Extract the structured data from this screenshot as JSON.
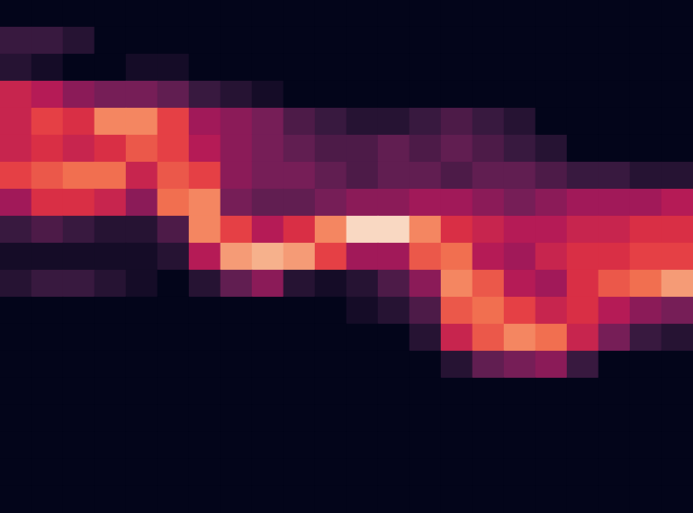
{
  "chart_data": {
    "type": "heatmap",
    "tick_labels": false,
    "grid": false,
    "zlim": [
      0,
      100
    ],
    "values": [
      [
        0,
        0,
        0,
        0,
        0,
        0,
        0,
        0,
        0,
        0,
        0,
        0,
        0,
        0,
        0,
        0,
        0,
        0,
        0,
        0,
        0,
        0
      ],
      [
        15,
        15,
        10,
        0,
        0,
        0,
        0,
        0,
        0,
        0,
        0,
        0,
        0,
        0,
        0,
        0,
        0,
        0,
        0,
        0,
        0,
        0
      ],
      [
        10,
        5,
        0,
        0,
        5,
        5,
        0,
        0,
        0,
        0,
        0,
        0,
        0,
        0,
        0,
        0,
        0,
        0,
        0,
        0,
        0,
        0
      ],
      [
        50,
        45,
        35,
        30,
        30,
        25,
        15,
        10,
        5,
        0,
        0,
        0,
        0,
        0,
        0,
        0,
        0,
        0,
        0,
        0,
        0,
        0
      ],
      [
        50,
        60,
        55,
        75,
        75,
        60,
        40,
        35,
        30,
        20,
        15,
        10,
        10,
        15,
        20,
        15,
        10,
        0,
        0,
        0,
        0,
        0
      ],
      [
        50,
        55,
        50,
        55,
        65,
        60,
        45,
        35,
        30,
        25,
        20,
        20,
        25,
        20,
        25,
        20,
        15,
        10,
        0,
        0,
        0,
        0
      ],
      [
        60,
        65,
        70,
        70,
        50,
        65,
        60,
        35,
        30,
        30,
        25,
        20,
        25,
        25,
        20,
        25,
        25,
        20,
        15,
        15,
        10,
        10
      ],
      [
        40,
        55,
        55,
        50,
        35,
        70,
        75,
        30,
        25,
        25,
        30,
        35,
        35,
        40,
        40,
        35,
        30,
        35,
        40,
        40,
        40,
        45
      ],
      [
        15,
        20,
        15,
        10,
        10,
        20,
        75,
        60,
        45,
        55,
        75,
        95,
        95,
        75,
        55,
        50,
        45,
        45,
        50,
        50,
        55,
        55
      ],
      [
        5,
        5,
        5,
        5,
        5,
        10,
        45,
        80,
        85,
        80,
        60,
        40,
        40,
        65,
        70,
        45,
        40,
        50,
        55,
        55,
        60,
        60
      ],
      [
        10,
        15,
        15,
        10,
        5,
        0,
        10,
        25,
        35,
        10,
        5,
        10,
        20,
        35,
        75,
        65,
        45,
        40,
        55,
        65,
        70,
        80
      ],
      [
        0,
        0,
        0,
        0,
        0,
        0,
        0,
        0,
        0,
        0,
        0,
        5,
        10,
        20,
        65,
        70,
        60,
        50,
        55,
        45,
        35,
        30
      ],
      [
        0,
        0,
        0,
        0,
        0,
        0,
        0,
        0,
        0,
        0,
        0,
        0,
        0,
        10,
        50,
        65,
        75,
        70,
        50,
        30,
        15,
        10
      ],
      [
        0,
        0,
        0,
        0,
        0,
        0,
        0,
        0,
        0,
        0,
        0,
        0,
        0,
        0,
        10,
        25,
        30,
        35,
        15,
        0,
        0,
        0
      ],
      [
        0,
        0,
        0,
        0,
        0,
        0,
        0,
        0,
        0,
        0,
        0,
        0,
        0,
        0,
        0,
        0,
        0,
        0,
        0,
        0,
        0,
        0
      ],
      [
        0,
        0,
        0,
        0,
        0,
        0,
        0,
        0,
        0,
        0,
        0,
        0,
        0,
        0,
        0,
        0,
        0,
        0,
        0,
        0,
        0,
        0
      ],
      [
        0,
        0,
        0,
        0,
        0,
        0,
        0,
        0,
        0,
        0,
        0,
        0,
        0,
        0,
        0,
        0,
        0,
        0,
        0,
        0,
        0,
        0
      ],
      [
        0,
        0,
        0,
        0,
        0,
        0,
        0,
        0,
        0,
        0,
        0,
        0,
        0,
        0,
        0,
        0,
        0,
        0,
        0,
        0,
        0,
        0
      ],
      [
        0,
        0,
        0,
        0,
        0,
        0,
        0,
        0,
        0,
        0,
        0,
        0,
        0,
        0,
        0,
        0,
        0,
        0,
        0,
        0,
        0,
        0
      ]
    ]
  }
}
